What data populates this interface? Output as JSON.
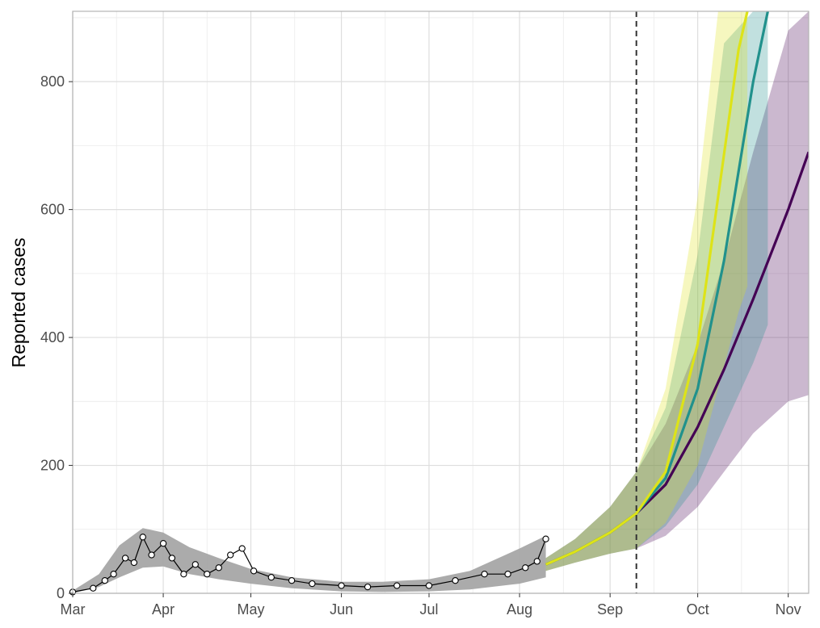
{
  "chart_data": {
    "type": "line",
    "title": "",
    "xlabel": "",
    "ylabel": "Reported cases",
    "x_ticks": [
      "Mar",
      "Apr",
      "May",
      "Jun",
      "Jul",
      "Aug",
      "Sep",
      "Oct",
      "Nov"
    ],
    "y_ticks": [
      0,
      200,
      400,
      600,
      800
    ],
    "xlim": [
      "2020-03-01",
      "2020-11-08"
    ],
    "ylim": [
      0,
      910
    ],
    "grid": true,
    "vline_date": "2020-09-10",
    "colors": {
      "observed": "#000000",
      "fit_band": "#a6a6a6",
      "scenario_purple": "#440154",
      "scenario_teal": "#21918c",
      "scenario_yellow": "#dde318",
      "vline": "#333333"
    },
    "observed": {
      "dates": [
        "2020-03-01",
        "2020-03-08",
        "2020-03-12",
        "2020-03-15",
        "2020-03-19",
        "2020-03-22",
        "2020-03-25",
        "2020-03-28",
        "2020-04-01",
        "2020-04-04",
        "2020-04-08",
        "2020-04-12",
        "2020-04-16",
        "2020-04-20",
        "2020-04-24",
        "2020-04-28",
        "2020-05-02",
        "2020-05-08",
        "2020-05-15",
        "2020-05-22",
        "2020-06-01",
        "2020-06-10",
        "2020-06-20",
        "2020-07-01",
        "2020-07-10",
        "2020-07-20",
        "2020-07-28",
        "2020-08-03",
        "2020-08-07",
        "2020-08-10"
      ],
      "values": [
        2,
        8,
        20,
        30,
        55,
        48,
        88,
        60,
        78,
        55,
        30,
        45,
        30,
        40,
        60,
        70,
        35,
        25,
        20,
        15,
        12,
        10,
        12,
        12,
        20,
        30,
        30,
        40,
        50,
        85
      ]
    },
    "fit_band": {
      "dates": [
        "2020-03-01",
        "2020-03-10",
        "2020-03-17",
        "2020-03-25",
        "2020-04-01",
        "2020-04-10",
        "2020-04-20",
        "2020-05-01",
        "2020-05-15",
        "2020-06-01",
        "2020-06-15",
        "2020-07-01",
        "2020-07-15",
        "2020-08-01",
        "2020-08-10"
      ],
      "lower": [
        0,
        10,
        25,
        40,
        42,
        30,
        22,
        15,
        8,
        3,
        2,
        3,
        6,
        15,
        25
      ],
      "upper": [
        4,
        30,
        75,
        102,
        95,
        72,
        55,
        38,
        25,
        18,
        18,
        22,
        35,
        70,
        90
      ]
    },
    "series": [
      {
        "color": "#440154",
        "dates": [
          "2020-08-10",
          "2020-08-20",
          "2020-09-01",
          "2020-09-10",
          "2020-09-20",
          "2020-10-01",
          "2020-10-10",
          "2020-10-20",
          "2020-11-01",
          "2020-11-08"
        ],
        "values": [
          45,
          65,
          95,
          125,
          170,
          260,
          350,
          460,
          600,
          690
        ],
        "lower": [
          35,
          48,
          62,
          70,
          90,
          135,
          190,
          250,
          300,
          310
        ],
        "upper": [
          55,
          85,
          135,
          190,
          265,
          390,
          520,
          690,
          880,
          1000
        ]
      },
      {
        "color": "#21918c",
        "dates": [
          "2020-08-10",
          "2020-08-20",
          "2020-09-01",
          "2020-09-10",
          "2020-09-20",
          "2020-10-01",
          "2020-10-10",
          "2020-10-20",
          "2020-10-25"
        ],
        "values": [
          45,
          65,
          95,
          125,
          180,
          320,
          520,
          800,
          910
        ],
        "lower": [
          35,
          48,
          62,
          70,
          105,
          170,
          260,
          360,
          420
        ],
        "upper": [
          55,
          85,
          135,
          190,
          290,
          530,
          860,
          1000,
          1000
        ]
      },
      {
        "color": "#dde318",
        "dates": [
          "2020-08-10",
          "2020-08-20",
          "2020-09-01",
          "2020-09-10",
          "2020-09-20",
          "2020-10-01",
          "2020-10-08",
          "2020-10-15",
          "2020-10-18"
        ],
        "values": [
          45,
          65,
          95,
          125,
          190,
          390,
          620,
          850,
          910
        ],
        "lower": [
          35,
          48,
          62,
          70,
          110,
          200,
          320,
          440,
          480
        ],
        "upper": [
          55,
          85,
          135,
          190,
          320,
          620,
          1000,
          1000,
          1000
        ]
      }
    ]
  }
}
